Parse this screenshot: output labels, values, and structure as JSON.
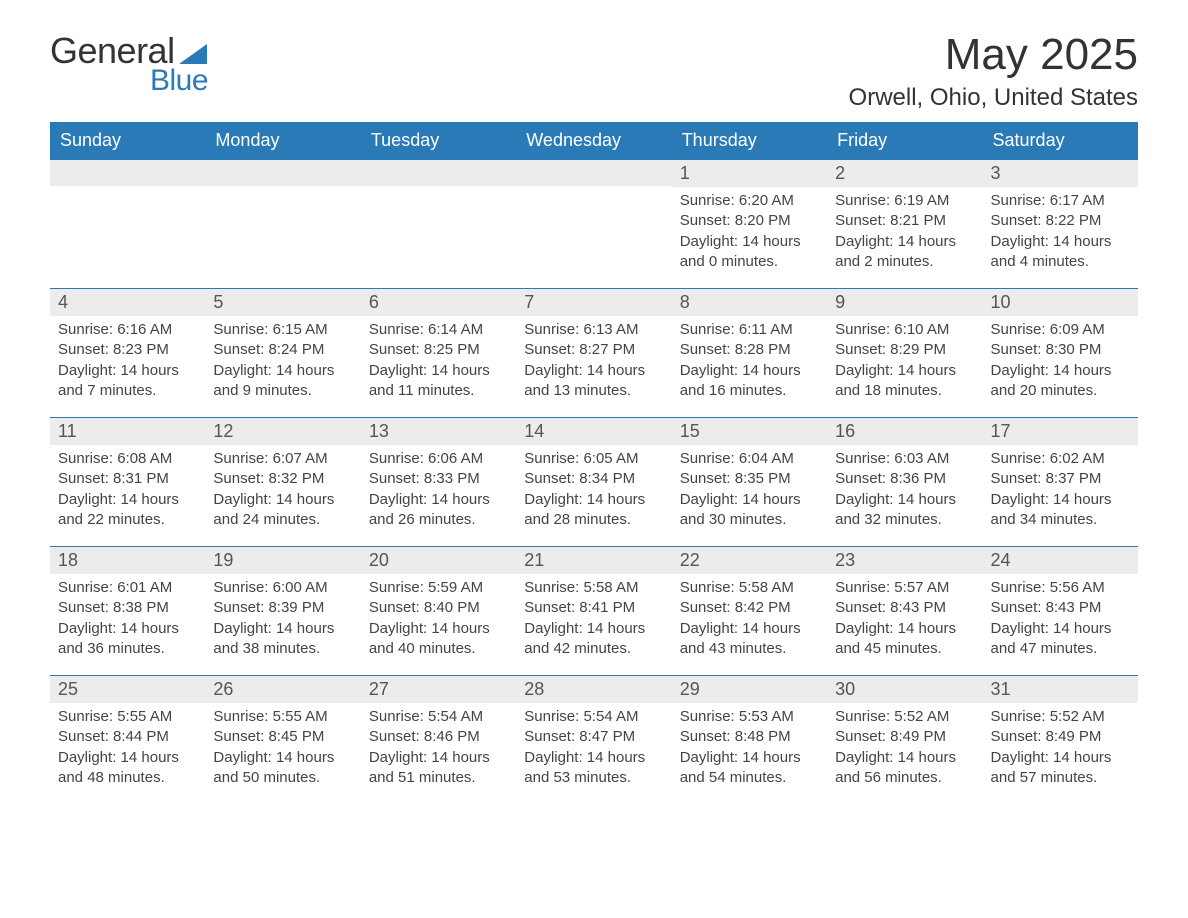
{
  "logo": {
    "text_general": "General",
    "text_blue": "Blue"
  },
  "title": "May 2025",
  "location": "Orwell, Ohio, United States",
  "weekdays": [
    "Sunday",
    "Monday",
    "Tuesday",
    "Wednesday",
    "Thursday",
    "Friday",
    "Saturday"
  ],
  "colors": {
    "header_bg": "#2a7ab8",
    "header_text": "#ffffff",
    "daynum_bg": "#ececec",
    "text": "#333333",
    "border": "#2a7ab8"
  },
  "typography": {
    "title_fontsize": 44,
    "location_fontsize": 24,
    "weekday_fontsize": 18,
    "daynum_fontsize": 18,
    "content_fontsize": 15
  },
  "labels": {
    "sunrise": "Sunrise:",
    "sunset": "Sunset:",
    "daylight": "Daylight:"
  },
  "weeks": [
    [
      {
        "empty": true
      },
      {
        "empty": true
      },
      {
        "empty": true
      },
      {
        "empty": true
      },
      {
        "day": "1",
        "sunrise": "6:20 AM",
        "sunset": "8:20 PM",
        "daylight": "14 hours and 0 minutes."
      },
      {
        "day": "2",
        "sunrise": "6:19 AM",
        "sunset": "8:21 PM",
        "daylight": "14 hours and 2 minutes."
      },
      {
        "day": "3",
        "sunrise": "6:17 AM",
        "sunset": "8:22 PM",
        "daylight": "14 hours and 4 minutes."
      }
    ],
    [
      {
        "day": "4",
        "sunrise": "6:16 AM",
        "sunset": "8:23 PM",
        "daylight": "14 hours and 7 minutes."
      },
      {
        "day": "5",
        "sunrise": "6:15 AM",
        "sunset": "8:24 PM",
        "daylight": "14 hours and 9 minutes."
      },
      {
        "day": "6",
        "sunrise": "6:14 AM",
        "sunset": "8:25 PM",
        "daylight": "14 hours and 11 minutes."
      },
      {
        "day": "7",
        "sunrise": "6:13 AM",
        "sunset": "8:27 PM",
        "daylight": "14 hours and 13 minutes."
      },
      {
        "day": "8",
        "sunrise": "6:11 AM",
        "sunset": "8:28 PM",
        "daylight": "14 hours and 16 minutes."
      },
      {
        "day": "9",
        "sunrise": "6:10 AM",
        "sunset": "8:29 PM",
        "daylight": "14 hours and 18 minutes."
      },
      {
        "day": "10",
        "sunrise": "6:09 AM",
        "sunset": "8:30 PM",
        "daylight": "14 hours and 20 minutes."
      }
    ],
    [
      {
        "day": "11",
        "sunrise": "6:08 AM",
        "sunset": "8:31 PM",
        "daylight": "14 hours and 22 minutes."
      },
      {
        "day": "12",
        "sunrise": "6:07 AM",
        "sunset": "8:32 PM",
        "daylight": "14 hours and 24 minutes."
      },
      {
        "day": "13",
        "sunrise": "6:06 AM",
        "sunset": "8:33 PM",
        "daylight": "14 hours and 26 minutes."
      },
      {
        "day": "14",
        "sunrise": "6:05 AM",
        "sunset": "8:34 PM",
        "daylight": "14 hours and 28 minutes."
      },
      {
        "day": "15",
        "sunrise": "6:04 AM",
        "sunset": "8:35 PM",
        "daylight": "14 hours and 30 minutes."
      },
      {
        "day": "16",
        "sunrise": "6:03 AM",
        "sunset": "8:36 PM",
        "daylight": "14 hours and 32 minutes."
      },
      {
        "day": "17",
        "sunrise": "6:02 AM",
        "sunset": "8:37 PM",
        "daylight": "14 hours and 34 minutes."
      }
    ],
    [
      {
        "day": "18",
        "sunrise": "6:01 AM",
        "sunset": "8:38 PM",
        "daylight": "14 hours and 36 minutes."
      },
      {
        "day": "19",
        "sunrise": "6:00 AM",
        "sunset": "8:39 PM",
        "daylight": "14 hours and 38 minutes."
      },
      {
        "day": "20",
        "sunrise": "5:59 AM",
        "sunset": "8:40 PM",
        "daylight": "14 hours and 40 minutes."
      },
      {
        "day": "21",
        "sunrise": "5:58 AM",
        "sunset": "8:41 PM",
        "daylight": "14 hours and 42 minutes."
      },
      {
        "day": "22",
        "sunrise": "5:58 AM",
        "sunset": "8:42 PM",
        "daylight": "14 hours and 43 minutes."
      },
      {
        "day": "23",
        "sunrise": "5:57 AM",
        "sunset": "8:43 PM",
        "daylight": "14 hours and 45 minutes."
      },
      {
        "day": "24",
        "sunrise": "5:56 AM",
        "sunset": "8:43 PM",
        "daylight": "14 hours and 47 minutes."
      }
    ],
    [
      {
        "day": "25",
        "sunrise": "5:55 AM",
        "sunset": "8:44 PM",
        "daylight": "14 hours and 48 minutes."
      },
      {
        "day": "26",
        "sunrise": "5:55 AM",
        "sunset": "8:45 PM",
        "daylight": "14 hours and 50 minutes."
      },
      {
        "day": "27",
        "sunrise": "5:54 AM",
        "sunset": "8:46 PM",
        "daylight": "14 hours and 51 minutes."
      },
      {
        "day": "28",
        "sunrise": "5:54 AM",
        "sunset": "8:47 PM",
        "daylight": "14 hours and 53 minutes."
      },
      {
        "day": "29",
        "sunrise": "5:53 AM",
        "sunset": "8:48 PM",
        "daylight": "14 hours and 54 minutes."
      },
      {
        "day": "30",
        "sunrise": "5:52 AM",
        "sunset": "8:49 PM",
        "daylight": "14 hours and 56 minutes."
      },
      {
        "day": "31",
        "sunrise": "5:52 AM",
        "sunset": "8:49 PM",
        "daylight": "14 hours and 57 minutes."
      }
    ]
  ]
}
